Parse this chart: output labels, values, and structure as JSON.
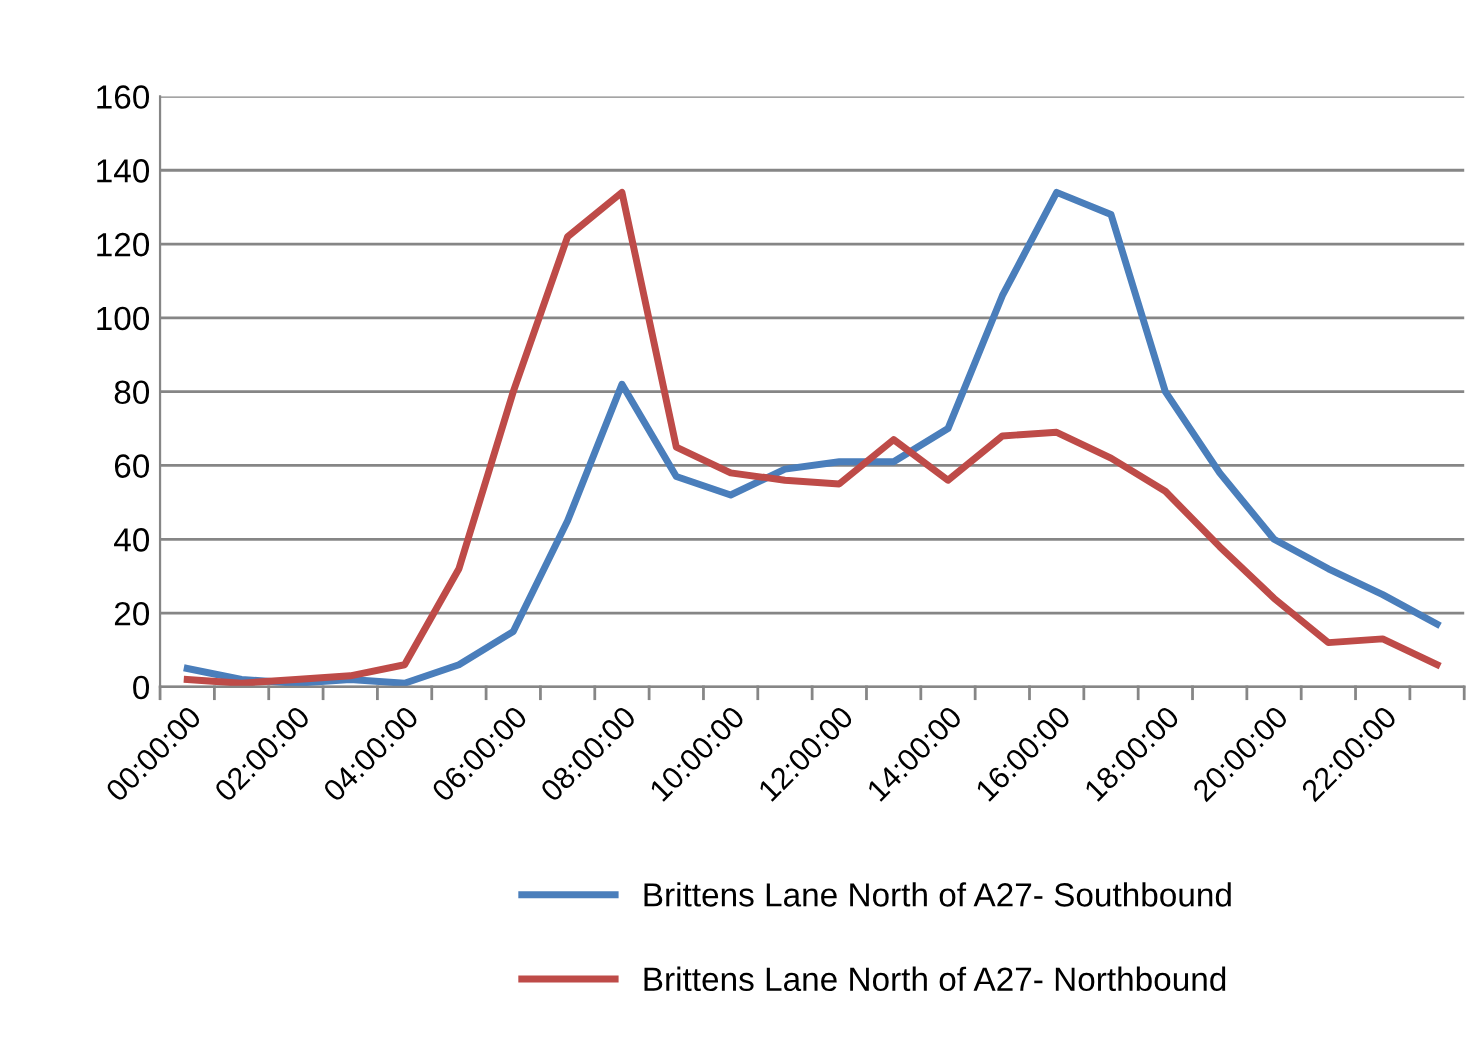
{
  "chart_data": {
    "type": "line",
    "categories": [
      "00:00:00",
      null,
      "02:00:00",
      null,
      "04:00:00",
      null,
      "06:00:00",
      null,
      "08:00:00",
      null,
      "10:00:00",
      null,
      "12:00:00",
      null,
      "14:00:00",
      null,
      "16:00:00",
      null,
      "18:00:00",
      null,
      "20:00:00",
      null,
      "22:00:00",
      null
    ],
    "series": [
      {
        "name": "Brittens Lane North of A27- Southbound",
        "color": "#4a7ebb",
        "values": [
          5,
          2,
          1,
          2,
          1,
          6,
          15,
          45,
          82,
          57,
          52,
          59,
          61,
          61,
          70,
          106,
          134,
          128,
          80,
          58,
          40,
          32,
          25,
          17
        ]
      },
      {
        "name": "Brittens Lane North of A27- Northbound",
        "color": "#be4b48",
        "values": [
          2,
          1,
          2,
          3,
          6,
          32,
          80,
          122,
          134,
          65,
          58,
          56,
          55,
          67,
          56,
          68,
          69,
          62,
          53,
          38,
          24,
          12,
          13,
          6
        ]
      }
    ],
    "ylim": [
      0,
      160
    ],
    "yticks": [
      0,
      20,
      40,
      60,
      80,
      100,
      120,
      140,
      160
    ],
    "grid": "y",
    "legend": "bottom",
    "marker": "none",
    "line_style": "solid"
  }
}
